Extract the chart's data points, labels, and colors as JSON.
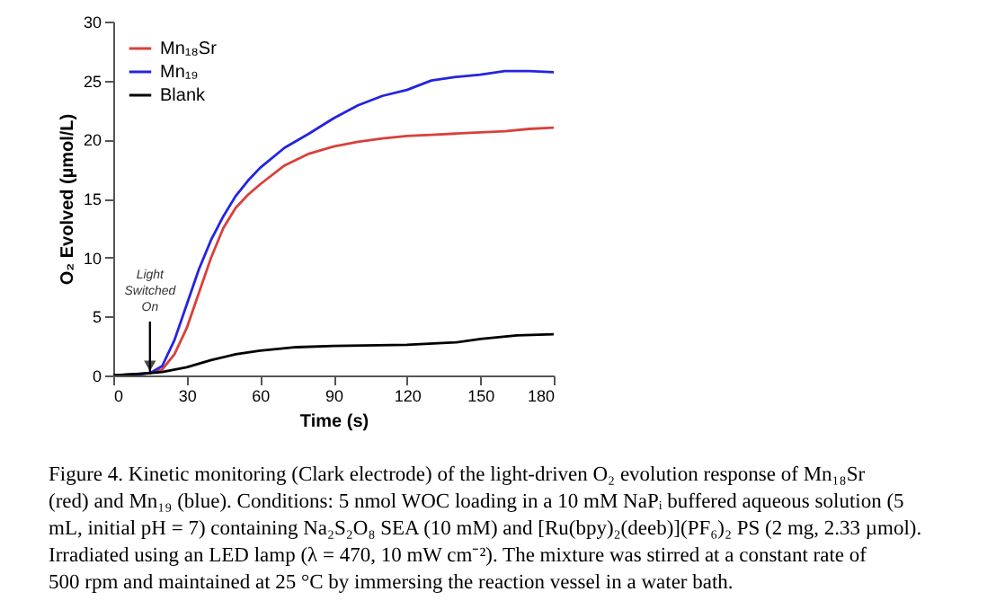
{
  "chart_data": {
    "type": "line",
    "xlabel": "Time (s)",
    "ylabel": "O₂ Evolved (µmol/L)",
    "xlim": [
      0,
      180
    ],
    "xticks": [
      0,
      30,
      60,
      90,
      120,
      150,
      180
    ],
    "ylim": [
      0,
      30
    ],
    "yticks": [
      0,
      5,
      10,
      15,
      20,
      25,
      30
    ],
    "grid": false,
    "legend": "top left",
    "line_style": "solid",
    "marker": "none",
    "series": [
      {
        "name": "Mn₁₈Sr",
        "color": "#d9403a",
        "x": [
          0,
          10,
          15,
          20,
          25,
          30,
          35,
          40,
          45,
          50,
          55,
          60,
          70,
          80,
          90,
          100,
          110,
          120,
          130,
          140,
          150,
          160,
          170,
          180
        ],
        "values": [
          0,
          0.1,
          0.2,
          0.5,
          1.8,
          4,
          7,
          10,
          12.5,
          14.2,
          15.3,
          16.2,
          17.8,
          18.8,
          19.4,
          19.8,
          20.1,
          20.3,
          20.4,
          20.5,
          20.6,
          20.7,
          20.9,
          21
        ]
      },
      {
        "name": "Mn₁₉",
        "color": "#2424e0",
        "x": [
          0,
          10,
          15,
          20,
          25,
          30,
          35,
          40,
          45,
          50,
          55,
          60,
          70,
          80,
          90,
          100,
          110,
          120,
          130,
          140,
          150,
          160,
          170,
          180
        ],
        "values": [
          0,
          0.1,
          0.2,
          0.8,
          3,
          6,
          9,
          11.5,
          13.5,
          15.2,
          16.5,
          17.6,
          19.3,
          20.5,
          21.8,
          22.9,
          23.7,
          24.2,
          25,
          25.3,
          25.5,
          25.8,
          25.8,
          25.7
        ]
      },
      {
        "name": "Blank",
        "color": "#000000",
        "x": [
          0,
          15,
          20,
          30,
          40,
          50,
          60,
          75,
          90,
          120,
          140,
          150,
          165,
          180
        ],
        "values": [
          0,
          0.2,
          0.3,
          0.7,
          1.3,
          1.8,
          2.1,
          2.4,
          2.5,
          2.6,
          2.8,
          3.1,
          3.4,
          3.5
        ]
      }
    ],
    "annotations": [
      {
        "text": "Light Switched On",
        "x": 15,
        "y": 0.2
      },
      "Figure 4. Kinetic monitoring (Clark electrode) of the light-driven O₂ evolution response of Mn₁₈Sr (red) and Mn₁₉ (blue). Conditions: 5 nmol WOC loading in a 10 mM NaPᵢ buffered aqueous solution (5 mL, initial pH = 7) containing Na₂S₂O₈ SEA (10 mM) and [Ru(bpy)₂(deeb)](PF₆)₂ PS (2 mg, 2.33 µmol). Irradiated using an LED lamp (λ = 470, 10 mW cm⁻²). The mixture was stirred at a constant rate of 500 rpm and maintained at 25 °C by immersing the reaction vessel in a water bath."
    ]
  }
}
